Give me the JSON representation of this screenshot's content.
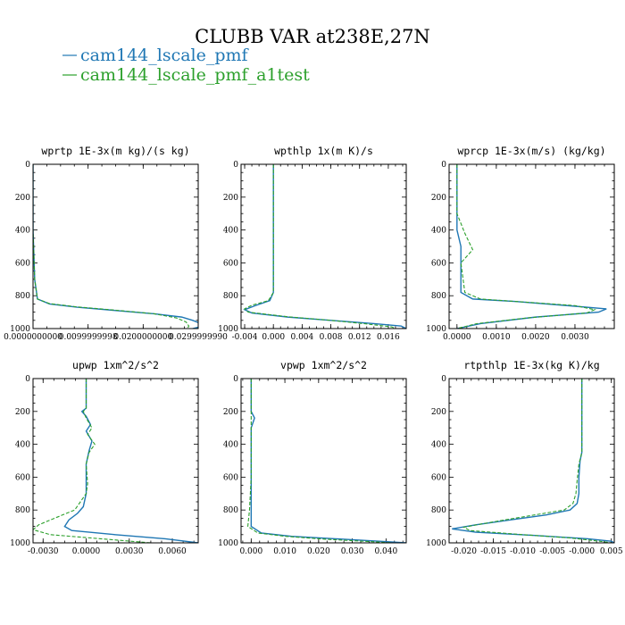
{
  "title": "CLUBB VAR at238E,27N",
  "legend": [
    {
      "label": "cam144_lscale_pmf",
      "color": "#1f77b4",
      "dash": "solid"
    },
    {
      "label": "cam144_lscale_pmf_a1test",
      "color": "#2ca02c",
      "dash": "dashed"
    }
  ],
  "chart_data": [
    {
      "type": "line",
      "title": "wprtp  1E-3x(m kg)/(s kg)",
      "xlim": [
        0,
        0.03
      ],
      "ylim": [
        1000,
        0
      ],
      "xticks": [
        0.0,
        0.01,
        0.02,
        0.03
      ],
      "xtick_labels": [
        "0.0000000000",
        "0.0099999998",
        "0.0200000000",
        "0.0299999990"
      ],
      "yticks": [
        0,
        200,
        400,
        600,
        800,
        1000
      ],
      "ytick_labels": [
        "0",
        "200",
        "400",
        "600",
        "800",
        "1000"
      ],
      "series": [
        {
          "name": "cam144_lscale_pmf",
          "points": [
            [
              0.0,
              0
            ],
            [
              0.0,
              400
            ],
            [
              0.0003,
              700
            ],
            [
              0.0008,
              820
            ],
            [
              0.003,
              850
            ],
            [
              0.008,
              870
            ],
            [
              0.015,
              890
            ],
            [
              0.022,
              910
            ],
            [
              0.027,
              930
            ],
            [
              0.029,
              950
            ],
            [
              0.0305,
              970
            ],
            [
              0.0302,
              990
            ],
            [
              0.029,
              1000
            ]
          ]
        },
        {
          "name": "cam144_lscale_pmf_a1test",
          "points": [
            [
              0.0,
              0
            ],
            [
              0.0,
              400
            ],
            [
              0.0003,
              700
            ],
            [
              0.0008,
              820
            ],
            [
              0.003,
              848
            ],
            [
              0.008,
              868
            ],
            [
              0.015,
              888
            ],
            [
              0.022,
              910
            ],
            [
              0.026,
              935
            ],
            [
              0.0278,
              960
            ],
            [
              0.0283,
              985
            ],
            [
              0.028,
              1000
            ]
          ]
        }
      ]
    },
    {
      "type": "line",
      "title": "wpthlp  1x(m K)/s",
      "xlim": [
        -0.0045,
        0.0185
      ],
      "ylim": [
        1000,
        0
      ],
      "xticks": [
        -0.004,
        0.0,
        0.004,
        0.008,
        0.012,
        0.016
      ],
      "xtick_labels": [
        "-0.004",
        "0.000",
        "0.004",
        "0.008",
        "0.012",
        "0.016"
      ],
      "yticks": [
        0,
        200,
        400,
        600,
        800,
        1000
      ],
      "ytick_labels": [
        "0",
        "200",
        "400",
        "600",
        "800",
        "1000"
      ],
      "series": [
        {
          "name": "cam144_lscale_pmf",
          "points": [
            [
              0.0,
              0
            ],
            [
              0.0,
              600
            ],
            [
              0.0,
              780
            ],
            [
              -0.0005,
              830
            ],
            [
              -0.0025,
              860
            ],
            [
              -0.004,
              885
            ],
            [
              -0.003,
              905
            ],
            [
              0.002,
              930
            ],
            [
              0.008,
              950
            ],
            [
              0.014,
              970
            ],
            [
              0.0178,
              985
            ],
            [
              0.0185,
              1000
            ]
          ]
        },
        {
          "name": "cam144_lscale_pmf_a1test",
          "points": [
            [
              0.0,
              0
            ],
            [
              0.0,
              600
            ],
            [
              0.0,
              780
            ],
            [
              -0.0007,
              830
            ],
            [
              -0.003,
              858
            ],
            [
              -0.004,
              880
            ],
            [
              -0.0035,
              900
            ],
            [
              0.002,
              928
            ],
            [
              0.008,
              950
            ],
            [
              0.013,
              972
            ],
            [
              0.0165,
              990
            ],
            [
              0.017,
              1000
            ]
          ]
        }
      ]
    },
    {
      "type": "line",
      "title": "wprcp  1E-3x(m/s) (kg/kg)",
      "xlim": [
        -0.0002,
        0.004
      ],
      "ylim": [
        1000,
        0
      ],
      "xticks": [
        0.0,
        0.001,
        0.002,
        0.003
      ],
      "xtick_labels": [
        "0.0000",
        "0.0010",
        "0.0020",
        "0.0030"
      ],
      "yticks": [
        0,
        200,
        400,
        600,
        800,
        1000
      ],
      "ytick_labels": [
        "0",
        "200",
        "400",
        "600",
        "800",
        "1000"
      ],
      "series": [
        {
          "name": "cam144_lscale_pmf",
          "points": [
            [
              0.0,
              0
            ],
            [
              0.0,
              400
            ],
            [
              0.0001,
              500
            ],
            [
              0.0001,
              600
            ],
            [
              0.0001,
              780
            ],
            [
              0.0004,
              820
            ],
            [
              0.0015,
              835
            ],
            [
              0.0028,
              860
            ],
            [
              0.0038,
              880
            ],
            [
              0.0036,
              900
            ],
            [
              0.002,
              930
            ],
            [
              0.0006,
              970
            ],
            [
              0.0,
              1000
            ]
          ]
        },
        {
          "name": "cam144_lscale_pmf_a1test",
          "points": [
            [
              0.0,
              0
            ],
            [
              0.0,
              300
            ],
            [
              0.0002,
              420
            ],
            [
              0.0003,
              470
            ],
            [
              0.0004,
              520
            ],
            [
              0.0001,
              600
            ],
            [
              0.0002,
              780
            ],
            [
              0.0006,
              820
            ],
            [
              0.0018,
              840
            ],
            [
              0.003,
              860
            ],
            [
              0.0035,
              885
            ],
            [
              0.0033,
              905
            ],
            [
              0.0018,
              935
            ],
            [
              0.0005,
              970
            ],
            [
              0.0,
              1000
            ]
          ]
        }
      ]
    },
    {
      "type": "line",
      "title": "upwp  1xm^2/s^2",
      "xlim": [
        -0.0037,
        0.0078
      ],
      "ylim": [
        1000,
        0
      ],
      "xticks": [
        -0.003,
        0.0,
        0.003,
        0.006
      ],
      "xtick_labels": [
        "-0.0030",
        "0.0000",
        "0.0030",
        "0.0060"
      ],
      "yticks": [
        0,
        200,
        400,
        600,
        800,
        1000
      ],
      "ytick_labels": [
        "0",
        "200",
        "400",
        "600",
        "800",
        "1000"
      ],
      "series": [
        {
          "name": "cam144_lscale_pmf",
          "points": [
            [
              0.0,
              0
            ],
            [
              0.0,
              180
            ],
            [
              -0.0003,
              200
            ],
            [
              0.0,
              230
            ],
            [
              0.0003,
              280
            ],
            [
              0.0,
              320
            ],
            [
              0.0004,
              380
            ],
            [
              0.0002,
              440
            ],
            [
              0.0,
              520
            ],
            [
              0.0,
              700
            ],
            [
              -0.0002,
              780
            ],
            [
              -0.0006,
              820
            ],
            [
              -0.0012,
              860
            ],
            [
              -0.0015,
              900
            ],
            [
              -0.001,
              925
            ],
            [
              0.002,
              950
            ],
            [
              0.0055,
              975
            ],
            [
              0.0078,
              1000
            ]
          ]
        },
        {
          "name": "cam144_lscale_pmf_a1test",
          "points": [
            [
              0.0,
              0
            ],
            [
              0.0,
              180
            ],
            [
              -0.0002,
              200
            ],
            [
              0.0,
              240
            ],
            [
              0.0004,
              300
            ],
            [
              0.0001,
              340
            ],
            [
              0.0006,
              400
            ],
            [
              0.0002,
              450
            ],
            [
              0.0,
              520
            ],
            [
              0.0001,
              640
            ],
            [
              0.0,
              700
            ],
            [
              -0.0008,
              800
            ],
            [
              -0.0022,
              850
            ],
            [
              -0.0033,
              890
            ],
            [
              -0.0037,
              920
            ],
            [
              -0.0025,
              950
            ],
            [
              0.001,
              975
            ],
            [
              0.0045,
              1000
            ]
          ]
        }
      ]
    },
    {
      "type": "line",
      "title": "vpwp  1xm^2/s^2",
      "xlim": [
        -0.003,
        0.046
      ],
      "ylim": [
        1000,
        0
      ],
      "xticks": [
        0.0,
        0.01,
        0.02,
        0.03,
        0.04
      ],
      "xtick_labels": [
        "0.000",
        "0.010",
        "0.020",
        "0.030",
        "0.040"
      ],
      "yticks": [
        0,
        200,
        400,
        600,
        800,
        1000
      ],
      "ytick_labels": [
        "0",
        "200",
        "400",
        "600",
        "800",
        "1000"
      ],
      "series": [
        {
          "name": "cam144_lscale_pmf",
          "points": [
            [
              0.0,
              0
            ],
            [
              0.0,
              200
            ],
            [
              0.001,
              240
            ],
            [
              0.0,
              300
            ],
            [
              0.0,
              600
            ],
            [
              0.0,
              800
            ],
            [
              0.0,
              900
            ],
            [
              0.003,
              940
            ],
            [
              0.012,
              960
            ],
            [
              0.025,
              975
            ],
            [
              0.038,
              990
            ],
            [
              0.046,
              1000
            ]
          ]
        },
        {
          "name": "cam144_lscale_pmf_a1test",
          "points": [
            [
              0.0,
              0
            ],
            [
              0.0,
              200
            ],
            [
              0.0,
              300
            ],
            [
              0.0,
              600
            ],
            [
              -0.0005,
              800
            ],
            [
              -0.001,
              900
            ],
            [
              0.002,
              940
            ],
            [
              0.01,
              960
            ],
            [
              0.022,
              978
            ],
            [
              0.035,
              992
            ],
            [
              0.042,
              1000
            ]
          ]
        }
      ]
    },
    {
      "type": "line",
      "title": "rtpthlp  1E-3x(kg K)/kg",
      "xlim": [
        -0.0225,
        0.0055
      ],
      "ylim": [
        1000,
        0
      ],
      "xticks": [
        -0.02,
        -0.015,
        -0.01,
        -0.005,
        0.0,
        0.005
      ],
      "xtick_labels": [
        "-0.020",
        "-0.015",
        "-0.010",
        "-0.005",
        "-0.000",
        "0.005"
      ],
      "yticks": [
        0,
        200,
        400,
        600,
        800,
        1000
      ],
      "ytick_labels": [
        "0",
        "200",
        "400",
        "600",
        "800",
        "1000"
      ],
      "series": [
        {
          "name": "cam144_lscale_pmf",
          "points": [
            [
              0.0,
              0
            ],
            [
              0.0,
              450
            ],
            [
              -0.0003,
              500
            ],
            [
              -0.0005,
              600
            ],
            [
              -0.0005,
              700
            ],
            [
              -0.0008,
              760
            ],
            [
              -0.002,
              800
            ],
            [
              -0.006,
              830
            ],
            [
              -0.012,
              860
            ],
            [
              -0.018,
              890
            ],
            [
              -0.022,
              915
            ],
            [
              -0.018,
              935
            ],
            [
              -0.008,
              955
            ],
            [
              0.001,
              975
            ],
            [
              0.005,
              990
            ],
            [
              0.0055,
              1000
            ]
          ]
        },
        {
          "name": "cam144_lscale_pmf_a1test",
          "points": [
            [
              0.0,
              0
            ],
            [
              0.0,
              450
            ],
            [
              -0.0005,
              520
            ],
            [
              -0.0008,
              620
            ],
            [
              -0.001,
              700
            ],
            [
              -0.0015,
              760
            ],
            [
              -0.003,
              800
            ],
            [
              -0.008,
              830
            ],
            [
              -0.013,
              860
            ],
            [
              -0.017,
              885
            ],
            [
              -0.02,
              905
            ],
            [
              -0.019,
              925
            ],
            [
              -0.01,
              950
            ],
            [
              -0.002,
              970
            ],
            [
              0.003,
              990
            ],
            [
              0.005,
              1000
            ]
          ]
        }
      ]
    }
  ]
}
